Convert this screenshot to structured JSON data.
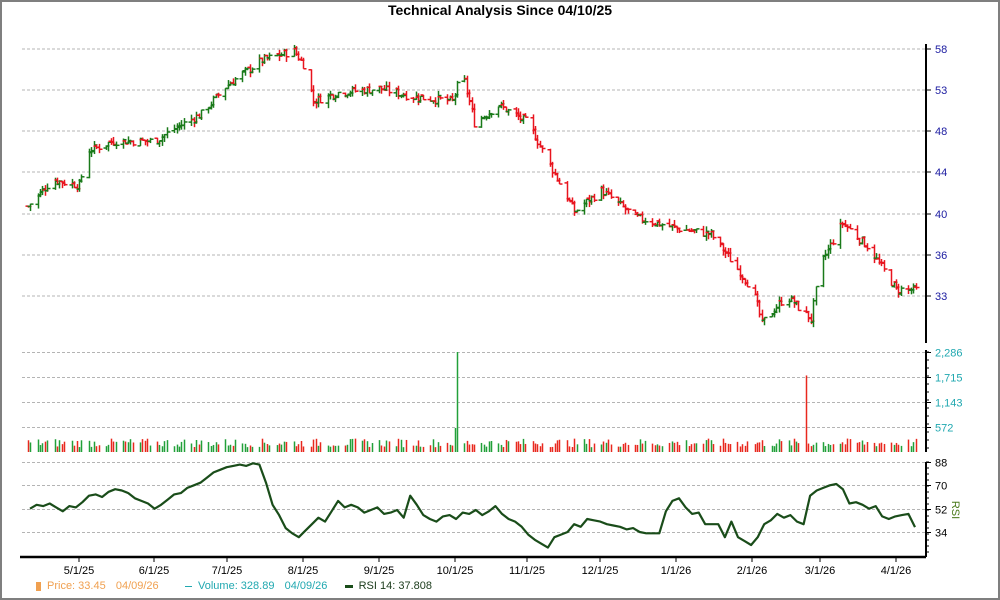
{
  "title": "Technical Analysis Since 04/10/25",
  "colors": {
    "up": "#1a7a1a",
    "down": "#e8141e",
    "vol_up": "#22a03a",
    "vol_down": "#e8281e",
    "rsi": "#1a4d1a",
    "price_axis_text": "#1a1aa0",
    "volume_axis_text": "#20a8b0",
    "rsi_axis_text": "#000000",
    "rsi_label": "#4a7a1a",
    "grid": "#b4b4b4",
    "legend_price": "#f0a050",
    "legend_volume": "#20a8b0",
    "legend_rsi": "#1a3a1a"
  },
  "legend": {
    "price_label": "Price: 33.45",
    "price_date": "04/09/26",
    "volume_label": "Volume: 328.89",
    "volume_date": "04/09/26",
    "rsi_label": "RSI 14: 37.808"
  },
  "rsi_axis_title": "RSI",
  "chart_data": [
    {
      "type": "ohlc",
      "title": "Technical Analysis Since 04/10/25",
      "ylabel": "Price",
      "y_ticks": [
        58,
        53,
        48,
        44,
        40,
        36,
        33
      ],
      "ylim": [
        29.5,
        58.5
      ],
      "x_ticks": [
        "5/1/25",
        "6/1/25",
        "7/1/25",
        "8/1/25",
        "9/1/25",
        "10/1/25",
        "11/1/25",
        "12/1/25",
        "1/1/26",
        "2/1/26",
        "3/1/26",
        "4/1/26"
      ],
      "grid": true,
      "close_series_approx": [
        {
          "date": "04/10/25",
          "close": 40.5
        },
        {
          "date": "04/20/25",
          "close": 43.0
        },
        {
          "date": "05/01/25",
          "close": 42.5
        },
        {
          "date": "05/05/25",
          "close": 46.0
        },
        {
          "date": "05/15/25",
          "close": 47.0
        },
        {
          "date": "06/01/25",
          "close": 47.0
        },
        {
          "date": "06/10/25",
          "close": 48.5
        },
        {
          "date": "06/20/25",
          "close": 50.0
        },
        {
          "date": "07/01/25",
          "close": 53.5
        },
        {
          "date": "07/15/25",
          "close": 56.5
        },
        {
          "date": "07/28/25",
          "close": 57.8
        },
        {
          "date": "08/01/25",
          "close": 56.0
        },
        {
          "date": "08/05/25",
          "close": 51.5
        },
        {
          "date": "08/15/25",
          "close": 52.5
        },
        {
          "date": "09/01/25",
          "close": 53.0
        },
        {
          "date": "09/15/25",
          "close": 52.0
        },
        {
          "date": "10/01/25",
          "close": 51.5
        },
        {
          "date": "10/05/25",
          "close": 55.0
        },
        {
          "date": "10/10/25",
          "close": 49.0
        },
        {
          "date": "10/20/25",
          "close": 51.0
        },
        {
          "date": "11/01/25",
          "close": 49.0
        },
        {
          "date": "11/10/25",
          "close": 44.5
        },
        {
          "date": "11/20/25",
          "close": 40.0
        },
        {
          "date": "12/01/25",
          "close": 42.0
        },
        {
          "date": "12/15/25",
          "close": 39.5
        },
        {
          "date": "01/01/26",
          "close": 38.5
        },
        {
          "date": "01/15/26",
          "close": 38.0
        },
        {
          "date": "02/01/26",
          "close": 33.5
        },
        {
          "date": "02/05/26",
          "close": 31.0
        },
        {
          "date": "02/15/26",
          "close": 33.0
        },
        {
          "date": "02/25/26",
          "close": 31.3
        },
        {
          "date": "03/01/26",
          "close": 35.5
        },
        {
          "date": "03/10/26",
          "close": 39.0
        },
        {
          "date": "03/20/26",
          "close": 37.0
        },
        {
          "date": "04/01/26",
          "close": 33.5
        },
        {
          "date": "04/09/26",
          "close": 33.45
        }
      ]
    },
    {
      "type": "bar",
      "title": "Volume",
      "y_ticks": [
        2286,
        1715,
        1143,
        572
      ],
      "ylim": [
        0,
        2286
      ],
      "notable_bars": [
        {
          "date": "06/01/25",
          "value": 520,
          "direction": "down"
        },
        {
          "date": "10/03/25",
          "value": 2286,
          "direction": "up"
        },
        {
          "date": "10/02/25",
          "value": 550,
          "direction": "up"
        },
        {
          "date": "02/23/26",
          "value": 1750,
          "direction": "down"
        },
        {
          "date": "02/01/26",
          "value": 570,
          "direction": "down"
        }
      ],
      "typical_value": 220,
      "last_value": 328.89
    },
    {
      "type": "line",
      "title": "RSI 14",
      "y_ticks": [
        88,
        70,
        52,
        34
      ],
      "ylim": [
        20,
        88
      ],
      "series": [
        {
          "name": "RSI 14",
          "values": [
            52,
            55,
            54,
            56,
            53,
            50,
            54,
            53,
            57,
            62,
            63,
            61,
            65,
            67,
            66,
            64,
            60,
            58,
            56,
            52,
            55,
            59,
            63,
            64,
            68,
            70,
            72,
            76,
            80,
            82,
            84,
            85,
            86,
            85,
            87,
            86,
            72,
            55,
            47,
            37,
            33,
            30,
            35,
            40,
            45,
            42,
            50,
            58,
            53,
            55,
            53,
            49,
            51,
            53,
            48,
            49,
            51,
            45,
            62,
            55,
            47,
            44,
            42,
            46,
            47,
            44,
            49,
            48,
            51,
            47,
            50,
            54,
            48,
            44,
            42,
            38,
            32,
            28,
            25,
            22,
            30,
            32,
            34,
            40,
            38,
            44,
            43,
            42,
            40,
            39,
            38,
            36,
            37,
            34,
            33,
            33,
            33,
            50,
            58,
            60,
            53,
            48,
            49,
            40,
            40,
            40,
            30,
            42,
            30,
            27,
            24,
            30,
            40,
            43,
            48,
            45,
            47,
            42,
            40,
            62,
            66,
            68,
            70,
            71,
            67,
            56,
            57,
            55,
            52,
            54,
            46,
            44,
            46,
            47,
            48,
            37.808
          ]
        }
      ],
      "last_value": 37.808
    }
  ]
}
